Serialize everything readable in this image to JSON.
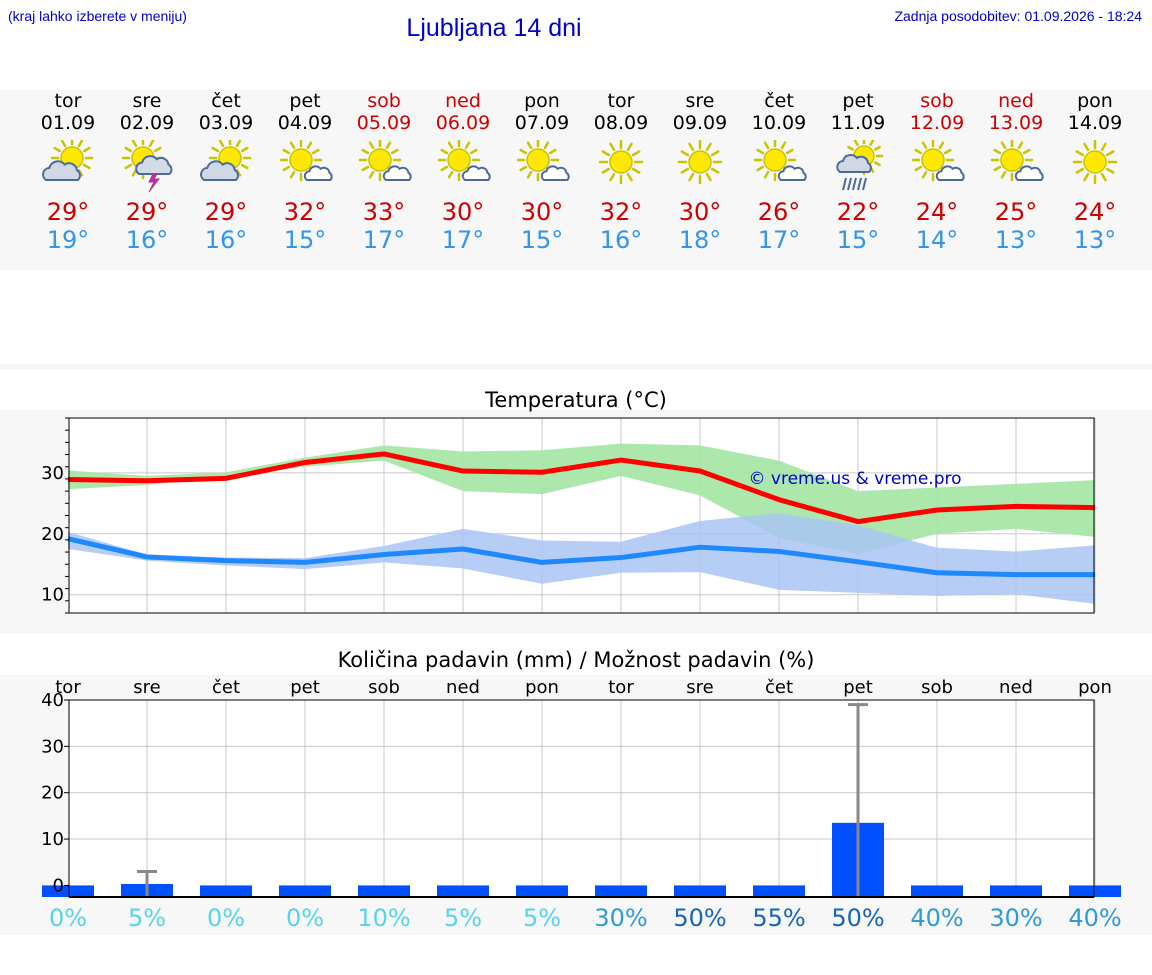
{
  "header": {
    "hint": "(kraj lahko izberete v meniju)",
    "title": "Ljubljana 14 dni",
    "updated": "Zadnja posodobitev: 01.09.2026 - 18:24"
  },
  "colors": {
    "weekend": "#cc0000",
    "max_line": "#ff0000",
    "max_band": "#a8e6a8",
    "min_line": "#1e88ff",
    "min_band": "#a9c4f3",
    "precip_bar": "#0050ff",
    "whisker": "#888888",
    "watermark": "#0000cc"
  },
  "days": [
    {
      "name": "tor",
      "date": "01.09",
      "weekend": false,
      "icon": "partly-cloudy-icon",
      "max": "29°",
      "min": "19°"
    },
    {
      "name": "sre",
      "date": "02.09",
      "weekend": false,
      "icon": "thunderstorm-icon",
      "max": "29°",
      "min": "16°"
    },
    {
      "name": "čet",
      "date": "03.09",
      "weekend": false,
      "icon": "partly-cloudy-icon",
      "max": "29°",
      "min": "16°"
    },
    {
      "name": "pet",
      "date": "04.09",
      "weekend": false,
      "icon": "sun-small-cloud-icon",
      "max": "32°",
      "min": "15°"
    },
    {
      "name": "sob",
      "date": "05.09",
      "weekend": true,
      "icon": "sun-small-cloud-icon",
      "max": "33°",
      "min": "17°"
    },
    {
      "name": "ned",
      "date": "06.09",
      "weekend": true,
      "icon": "sun-small-cloud-icon",
      "max": "30°",
      "min": "17°"
    },
    {
      "name": "pon",
      "date": "07.09",
      "weekend": false,
      "icon": "sun-small-cloud-icon",
      "max": "30°",
      "min": "15°"
    },
    {
      "name": "tor",
      "date": "08.09",
      "weekend": false,
      "icon": "sun-icon",
      "max": "32°",
      "min": "16°"
    },
    {
      "name": "sre",
      "date": "09.09",
      "weekend": false,
      "icon": "sun-icon",
      "max": "30°",
      "min": "18°"
    },
    {
      "name": "čet",
      "date": "10.09",
      "weekend": false,
      "icon": "sun-small-cloud-icon",
      "max": "26°",
      "min": "17°"
    },
    {
      "name": "pet",
      "date": "11.09",
      "weekend": false,
      "icon": "rain-icon",
      "max": "22°",
      "min": "15°"
    },
    {
      "name": "sob",
      "date": "12.09",
      "weekend": true,
      "icon": "sun-small-cloud-icon",
      "max": "24°",
      "min": "14°"
    },
    {
      "name": "ned",
      "date": "13.09",
      "weekend": true,
      "icon": "sun-small-cloud-icon",
      "max": "25°",
      "min": "13°"
    },
    {
      "name": "pon",
      "date": "14.09",
      "weekend": false,
      "icon": "sun-icon",
      "max": "24°",
      "min": "13°"
    }
  ],
  "temp_chart_title": "Temperatura (°C)",
  "watermark": "© vreme.us & vreme.pro",
  "precip_chart_title": "Količina padavin (mm) / Možnost padavin (%)",
  "chart_data": [
    {
      "type": "line",
      "title": "Temperatura (°C)",
      "x": [
        "01.09",
        "02.09",
        "03.09",
        "04.09",
        "05.09",
        "06.09",
        "07.09",
        "08.09",
        "09.09",
        "10.09",
        "11.09",
        "12.09",
        "13.09",
        "14.09"
      ],
      "yticks": [
        10,
        20,
        30
      ],
      "ylim": [
        7,
        39
      ],
      "grid": true,
      "series": [
        {
          "values": [
            28.9,
            28.7,
            29.1,
            31.7,
            33.1,
            30.3,
            30.1,
            32.1,
            30.3,
            25.6,
            22.0,
            23.9,
            24.5,
            24.3
          ],
          "band_low": [
            27.3,
            28.0,
            29.5,
            31.0,
            32.0,
            27.0,
            26.5,
            29.5,
            26.3,
            19.3,
            16.7,
            20.0,
            20.8,
            19.5
          ],
          "band_high": [
            30.4,
            29.5,
            30.1,
            32.5,
            34.5,
            33.5,
            33.7,
            34.8,
            34.5,
            32.0,
            27.0,
            27.6,
            28.2,
            28.8
          ]
        },
        {
          "values": [
            19.2,
            16.2,
            15.6,
            15.3,
            16.6,
            17.5,
            15.3,
            16.1,
            17.8,
            17.1,
            15.4,
            13.6,
            13.3,
            13.3
          ],
          "band_low": [
            17.5,
            15.6,
            14.8,
            14.2,
            15.3,
            14.3,
            11.8,
            13.6,
            13.7,
            10.8,
            10.3,
            9.8,
            10.1,
            8.5
          ],
          "band_high": [
            20.3,
            16.6,
            16.1,
            16.0,
            18.0,
            20.8,
            18.9,
            18.7,
            22.1,
            23.4,
            21.4,
            17.7,
            17.1,
            18.1
          ]
        }
      ]
    },
    {
      "type": "bar",
      "title": "Količina padavin (mm) / Možnost padavin (%)",
      "categories": [
        "tor",
        "sre",
        "čet",
        "pet",
        "sob",
        "ned",
        "pon",
        "tor",
        "sre",
        "čet",
        "pet",
        "sob",
        "ned",
        "pon"
      ],
      "values": [
        0,
        0.3,
        0,
        0,
        0,
        0,
        0,
        0,
        0,
        0,
        13.5,
        0,
        0,
        0
      ],
      "error_high": [
        0,
        3.0,
        0,
        0,
        0,
        0,
        0,
        0,
        0,
        0,
        39.0,
        0,
        0,
        0
      ],
      "probability": [
        "0%",
        "5%",
        "0%",
        "0%",
        "10%",
        "5%",
        "5%",
        "30%",
        "50%",
        "55%",
        "50%",
        "40%",
        "30%",
        "40%"
      ],
      "probability_colors": [
        "#55d4ec",
        "#55d4ec",
        "#55d4ec",
        "#55d4ec",
        "#55d4ec",
        "#55d4ec",
        "#55d4ec",
        "#2e9bd6",
        "#1565b8",
        "#1565b8",
        "#1565b8",
        "#2e9bd6",
        "#2e9bd6",
        "#2e9bd6"
      ],
      "yticks": [
        0,
        10,
        20,
        30,
        40
      ],
      "ylim": [
        -2.5,
        40
      ],
      "grid": true
    }
  ]
}
